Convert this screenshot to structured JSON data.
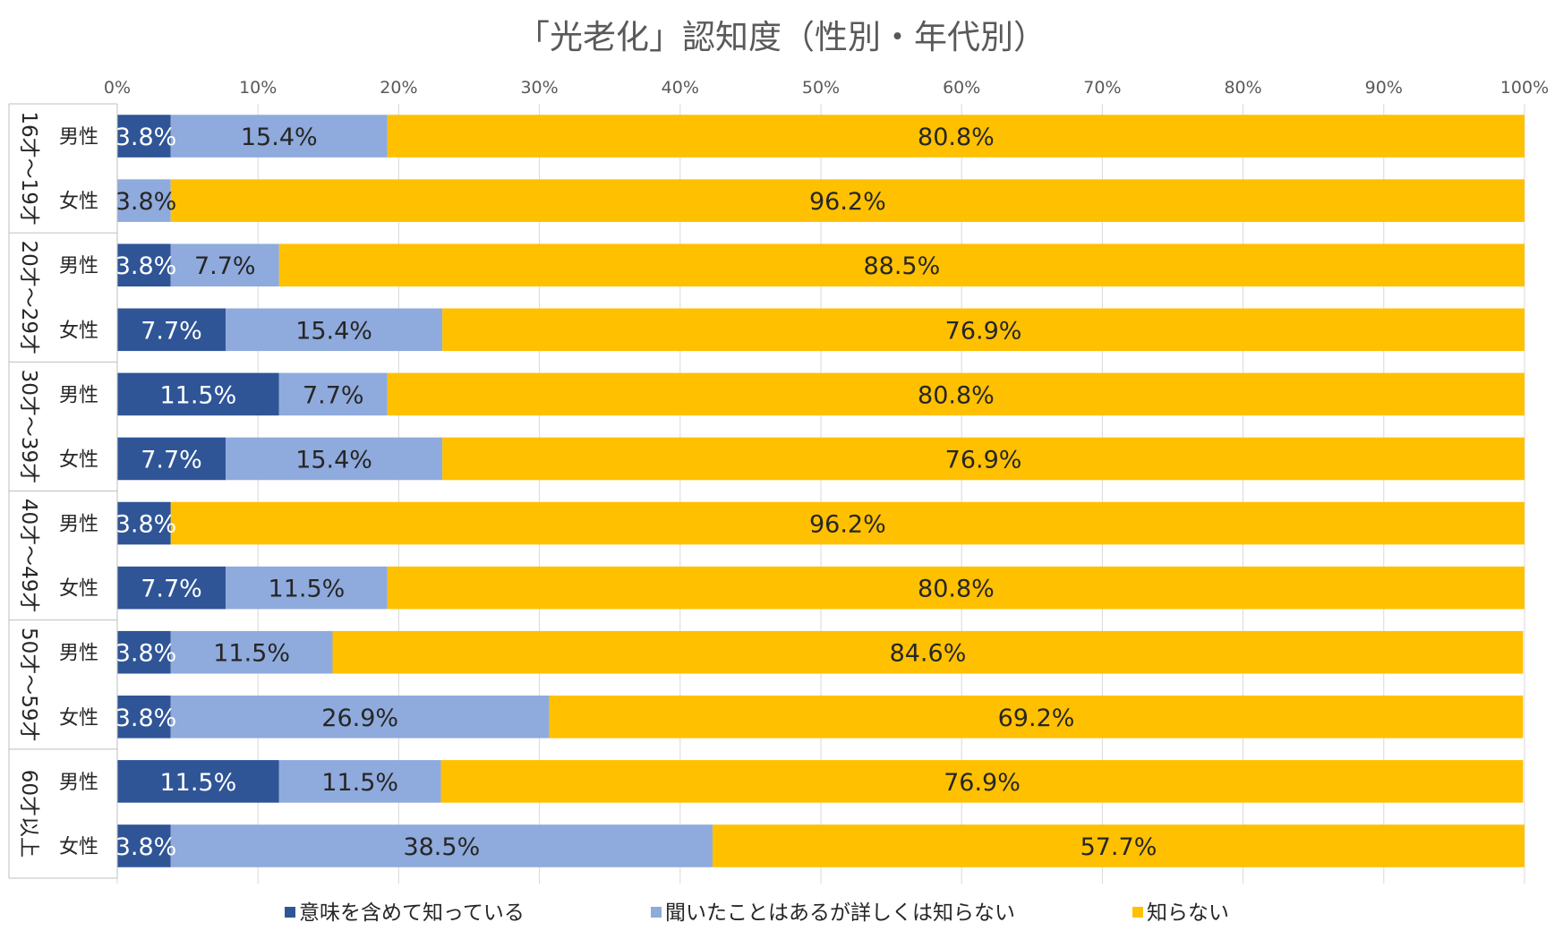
{
  "chart_data": {
    "type": "bar",
    "orientation": "horizontal",
    "stacked": "percent",
    "title": "「光老化」認知度（性別・年代別）",
    "x_ticks": [
      "0%",
      "10%",
      "20%",
      "30%",
      "40%",
      "50%",
      "60%",
      "70%",
      "80%",
      "90%",
      "100%"
    ],
    "xlim": [
      0,
      100
    ],
    "grid": true,
    "legend_position": "bottom",
    "groups": [
      {
        "label": "16才～19才",
        "categories": [
          "男性",
          "女性"
        ]
      },
      {
        "label": "20才～29才",
        "categories": [
          "男性",
          "女性"
        ]
      },
      {
        "label": "30才～39才",
        "categories": [
          "男性",
          "女性"
        ]
      },
      {
        "label": "40才～49才",
        "categories": [
          "男性",
          "女性"
        ]
      },
      {
        "label": "50才～59才",
        "categories": [
          "男性",
          "女性"
        ]
      },
      {
        "label": "60才以上",
        "categories": [
          "男性",
          "女性"
        ]
      }
    ],
    "series": [
      {
        "name": "意味を含めて知っている",
        "color": "#2F5597",
        "label_color": "#ffffff",
        "values": [
          3.8,
          0,
          3.8,
          7.7,
          11.5,
          7.7,
          3.8,
          7.7,
          3.8,
          3.8,
          11.5,
          3.8
        ],
        "labels": [
          "3.8%",
          "",
          "3.8%",
          "7.7%",
          "11.5%",
          "7.7%",
          "3.8%",
          "7.7%",
          "3.8%",
          "3.8%",
          "11.5%",
          "3.8%"
        ]
      },
      {
        "name": "聞いたことはあるが詳しくは知らない",
        "color": "#8FAADC",
        "label_color": "#262626",
        "values": [
          15.4,
          3.8,
          7.7,
          15.4,
          7.7,
          15.4,
          0,
          11.5,
          11.5,
          26.9,
          11.5,
          38.5
        ],
        "labels": [
          "15.4%",
          "3.8%",
          "7.7%",
          "15.4%",
          "7.7%",
          "15.4%",
          "",
          "11.5%",
          "11.5%",
          "26.9%",
          "11.5%",
          "38.5%"
        ]
      },
      {
        "name": "知らない",
        "color": "#FFC000",
        "label_color": "#262626",
        "values": [
          80.8,
          96.2,
          88.5,
          76.9,
          80.8,
          76.9,
          96.2,
          80.8,
          84.6,
          69.2,
          76.9,
          57.7
        ],
        "labels": [
          "80.8%",
          "96.2%",
          "88.5%",
          "76.9%",
          "80.8%",
          "76.9%",
          "96.2%",
          "80.8%",
          "84.6%",
          "69.2%",
          "76.9%",
          "57.7%"
        ]
      }
    ]
  }
}
